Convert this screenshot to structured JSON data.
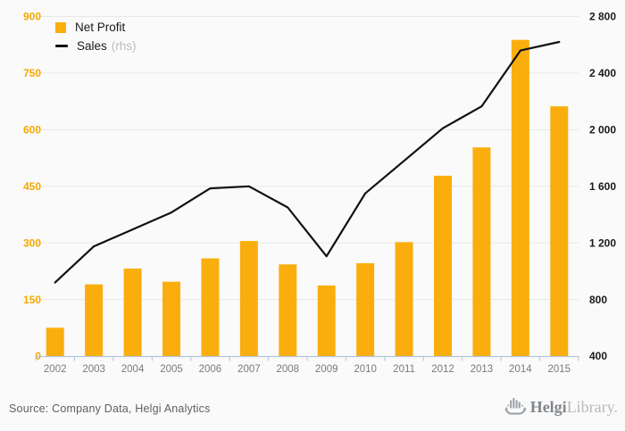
{
  "chart_data": {
    "type": "combo-bar-line",
    "title": "",
    "categories": [
      "2002",
      "2003",
      "2004",
      "2005",
      "2006",
      "2007",
      "2008",
      "2009",
      "2010",
      "2011",
      "2012",
      "2013",
      "2014",
      "2015"
    ],
    "series": [
      {
        "name": "Net Profit",
        "type": "bar",
        "axis": "left",
        "color": "#FAAE0D",
        "values": [
          75,
          190,
          232,
          197,
          259,
          305,
          243,
          187,
          246,
          302,
          478,
          553,
          838,
          662
        ]
      },
      {
        "name": "Sales",
        "type": "line",
        "axis": "right",
        "color": "#111111",
        "values": [
          920,
          1175,
          1295,
          1415,
          1585,
          1600,
          1450,
          1105,
          1550,
          1780,
          2010,
          2165,
          2560,
          2620
        ]
      }
    ],
    "left_axis": {
      "min": 0,
      "max": 2800,
      "range_min": 0,
      "range_max": 900,
      "step": 150,
      "tick_labels": [
        "0",
        "150",
        "300",
        "450",
        "600",
        "750",
        "900"
      ],
      "label_color": "#F6A800"
    },
    "right_axis": {
      "min": 400,
      "max": 2800,
      "range_min": 400,
      "range_max": 2800,
      "step": 400,
      "tick_labels": [
        "400",
        "800",
        "1 200",
        "1 600",
        "2 000",
        "2 400",
        "2 800"
      ],
      "label_color": "#1A1A1A"
    },
    "grid": true,
    "legend_position": "top-left"
  },
  "legend": {
    "items": [
      {
        "label": "Net Profit",
        "suffix": "",
        "swatch": "square",
        "color": "#FAAE0D"
      },
      {
        "label": "Sales",
        "suffix": "(rhs)",
        "swatch": "line",
        "color": "#111111"
      }
    ]
  },
  "footer": {
    "source": "Source: Company Data, Helgi Analytics",
    "logo": {
      "brand": "Helgi",
      "brand_suffix": "Library."
    }
  },
  "colors": {
    "background": "#FAFAFA",
    "gridline": "#E8E8E8",
    "axis_line": "#B6C2D9",
    "bar": "#FAAE0D",
    "line": "#111111",
    "left_labels": "#F6A800",
    "right_labels": "#1A1A1A",
    "year_labels": "#7A7A7A"
  }
}
